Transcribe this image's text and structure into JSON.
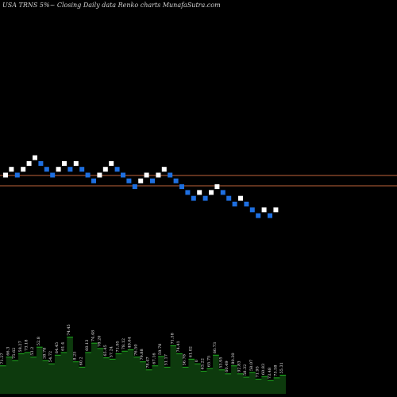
{
  "chart_data": {
    "type": "renko",
    "title": "USA TRNS 5%~  Closing Daily data  Renko  charts MunafaSutra.com",
    "colors": {
      "background": "#000000",
      "up_brick": "#ffffff",
      "down_brick": "#1e6fe0",
      "reference_line": "#c0643a",
      "volume_fill": "#0d3a0d",
      "volume_top": "#1fae1f"
    },
    "reference_levels": [
      1.0,
      0.0
    ],
    "bricks": [
      {
        "col": 0,
        "level": 5,
        "dir": "up"
      },
      {
        "col": 1,
        "level": 6,
        "dir": "up"
      },
      {
        "col": 2,
        "level": 5,
        "dir": "down"
      },
      {
        "col": 3,
        "level": 6,
        "dir": "up"
      },
      {
        "col": 4,
        "level": 7,
        "dir": "up"
      },
      {
        "col": 5,
        "level": 8,
        "dir": "up"
      },
      {
        "col": 6,
        "level": 7,
        "dir": "down"
      },
      {
        "col": 7,
        "level": 6,
        "dir": "down"
      },
      {
        "col": 8,
        "level": 5,
        "dir": "down"
      },
      {
        "col": 9,
        "level": 6,
        "dir": "up"
      },
      {
        "col": 10,
        "level": 7,
        "dir": "up"
      },
      {
        "col": 11,
        "level": 6,
        "dir": "down"
      },
      {
        "col": 12,
        "level": 7,
        "dir": "up"
      },
      {
        "col": 13,
        "level": 6,
        "dir": "down"
      },
      {
        "col": 14,
        "level": 5,
        "dir": "down"
      },
      {
        "col": 15,
        "level": 4,
        "dir": "down"
      },
      {
        "col": 16,
        "level": 5,
        "dir": "up"
      },
      {
        "col": 17,
        "level": 6,
        "dir": "up"
      },
      {
        "col": 18,
        "level": 7,
        "dir": "up"
      },
      {
        "col": 19,
        "level": 6,
        "dir": "down"
      },
      {
        "col": 20,
        "level": 5,
        "dir": "down"
      },
      {
        "col": 21,
        "level": 4,
        "dir": "down"
      },
      {
        "col": 22,
        "level": 3,
        "dir": "down"
      },
      {
        "col": 23,
        "level": 4,
        "dir": "up"
      },
      {
        "col": 24,
        "level": 5,
        "dir": "up"
      },
      {
        "col": 25,
        "level": 4,
        "dir": "down"
      },
      {
        "col": 26,
        "level": 5,
        "dir": "up"
      },
      {
        "col": 27,
        "level": 6,
        "dir": "up"
      },
      {
        "col": 28,
        "level": 5,
        "dir": "down"
      },
      {
        "col": 29,
        "level": 4,
        "dir": "down"
      },
      {
        "col": 30,
        "level": 3,
        "dir": "down"
      },
      {
        "col": 31,
        "level": 2,
        "dir": "down"
      },
      {
        "col": 32,
        "level": 1,
        "dir": "down"
      },
      {
        "col": 33,
        "level": 2,
        "dir": "up"
      },
      {
        "col": 34,
        "level": 1,
        "dir": "down"
      },
      {
        "col": 35,
        "level": 2,
        "dir": "up"
      },
      {
        "col": 36,
        "level": 3,
        "dir": "up"
      },
      {
        "col": 37,
        "level": 2,
        "dir": "down"
      },
      {
        "col": 38,
        "level": 1,
        "dir": "down"
      },
      {
        "col": 39,
        "level": 0,
        "dir": "down"
      },
      {
        "col": 40,
        "level": 1,
        "dir": "up"
      },
      {
        "col": 41,
        "level": 0,
        "dir": "down"
      },
      {
        "col": 42,
        "level": -1,
        "dir": "down"
      },
      {
        "col": 43,
        "level": -2,
        "dir": "down"
      },
      {
        "col": 44,
        "level": -1,
        "dir": "up"
      },
      {
        "col": 45,
        "level": -2,
        "dir": "down"
      },
      {
        "col": 46,
        "level": -1,
        "dir": "up"
      }
    ],
    "volume": [
      0.42,
      0.55,
      0.5,
      0.6,
      0.62,
      0.55,
      0.7,
      0.5,
      0.45,
      0.58,
      0.62,
      0.85,
      0.48,
      0.4,
      0.62,
      0.76,
      0.68,
      0.54,
      0.52,
      0.6,
      0.64,
      0.66,
      0.55,
      0.48,
      0.36,
      0.42,
      0.56,
      0.4,
      0.72,
      0.6,
      0.4,
      0.52,
      0.45,
      0.34,
      0.38,
      0.58,
      0.36,
      0.3,
      0.42,
      0.3,
      0.25,
      0.32,
      0.22,
      0.26,
      0.2,
      0.24,
      0.28
    ],
    "volume_labels": [
      "71.27",
      "66.3",
      "75.62",
      "58.27",
      "73.18",
      "53.2",
      "52.8",
      "38.78",
      "54.72",
      "64.45",
      "61.4",
      "74.45",
      "8.25",
      "60.2",
      "60.13",
      "74.48",
      "78.20",
      "65.45",
      "57.24",
      "71.95",
      "78.12",
      "49.64",
      "76.50",
      "79.88",
      "78.47",
      "67.16",
      "59.78",
      "51.17",
      "71.58",
      "74.41",
      "56.78",
      "61.02",
      "0",
      "63.22",
      "65.75",
      "60.73",
      "53.95",
      "60.49",
      "80.30",
      "92.83",
      "58.32",
      "58.07",
      "71.95",
      "60.83",
      "73.48",
      "75.58",
      "55.31"
    ]
  }
}
